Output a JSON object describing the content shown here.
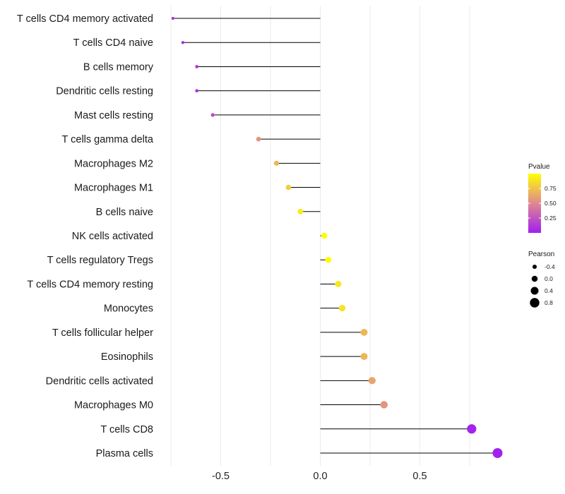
{
  "chart_data": {
    "type": "lollipop",
    "title": "",
    "xlabel": "",
    "ylabel": "",
    "xlim": [
      -0.75,
      0.9
    ],
    "x_ticks": [
      -0.5,
      0.0,
      0.5
    ],
    "x_tick_labels": [
      "-0.5",
      "0.0",
      "0.5"
    ],
    "grid": true,
    "categories": [
      "T cells CD4 memory activated",
      "T cells CD4 naive",
      "B cells memory",
      "Dendritic cells resting",
      "Mast cells resting",
      "T cells gamma delta",
      "Macrophages M2",
      "Macrophages M1",
      "B cells naive",
      "NK cells activated",
      "T cells regulatory  Tregs",
      "T cells CD4 memory resting",
      "Monocytes",
      "T cells follicular helper",
      "Eosinophils",
      "Dendritic cells activated",
      "Macrophages M0",
      "T cells CD8",
      "Plasma cells"
    ],
    "values": [
      -0.74,
      -0.69,
      -0.62,
      -0.62,
      -0.54,
      -0.31,
      -0.22,
      -0.16,
      -0.1,
      0.02,
      0.04,
      0.09,
      0.11,
      0.22,
      0.22,
      0.26,
      0.32,
      0.76,
      0.89
    ],
    "pvalues": [
      0.05,
      0.05,
      0.12,
      0.12,
      0.2,
      0.55,
      0.7,
      0.8,
      0.92,
      1.0,
      1.0,
      0.9,
      0.88,
      0.7,
      0.7,
      0.62,
      0.55,
      0.02,
      0.01
    ],
    "legend": {
      "placement": "right",
      "color": {
        "title": "Pvalue",
        "ticks": [
          0.25,
          0.5,
          0.75
        ],
        "tick_labels": [
          "0.25",
          "0.50",
          "0.75"
        ],
        "range": [
          0.0,
          1.0
        ],
        "low_color": "#a020f0",
        "mid_color": "#e08890",
        "high_color": "#ffff00"
      },
      "size": {
        "title": "Pearson",
        "values": [
          -0.4,
          0.0,
          0.4,
          0.8
        ],
        "labels": [
          "-0.4",
          "0.0",
          "0.4",
          "0.8"
        ]
      }
    }
  }
}
